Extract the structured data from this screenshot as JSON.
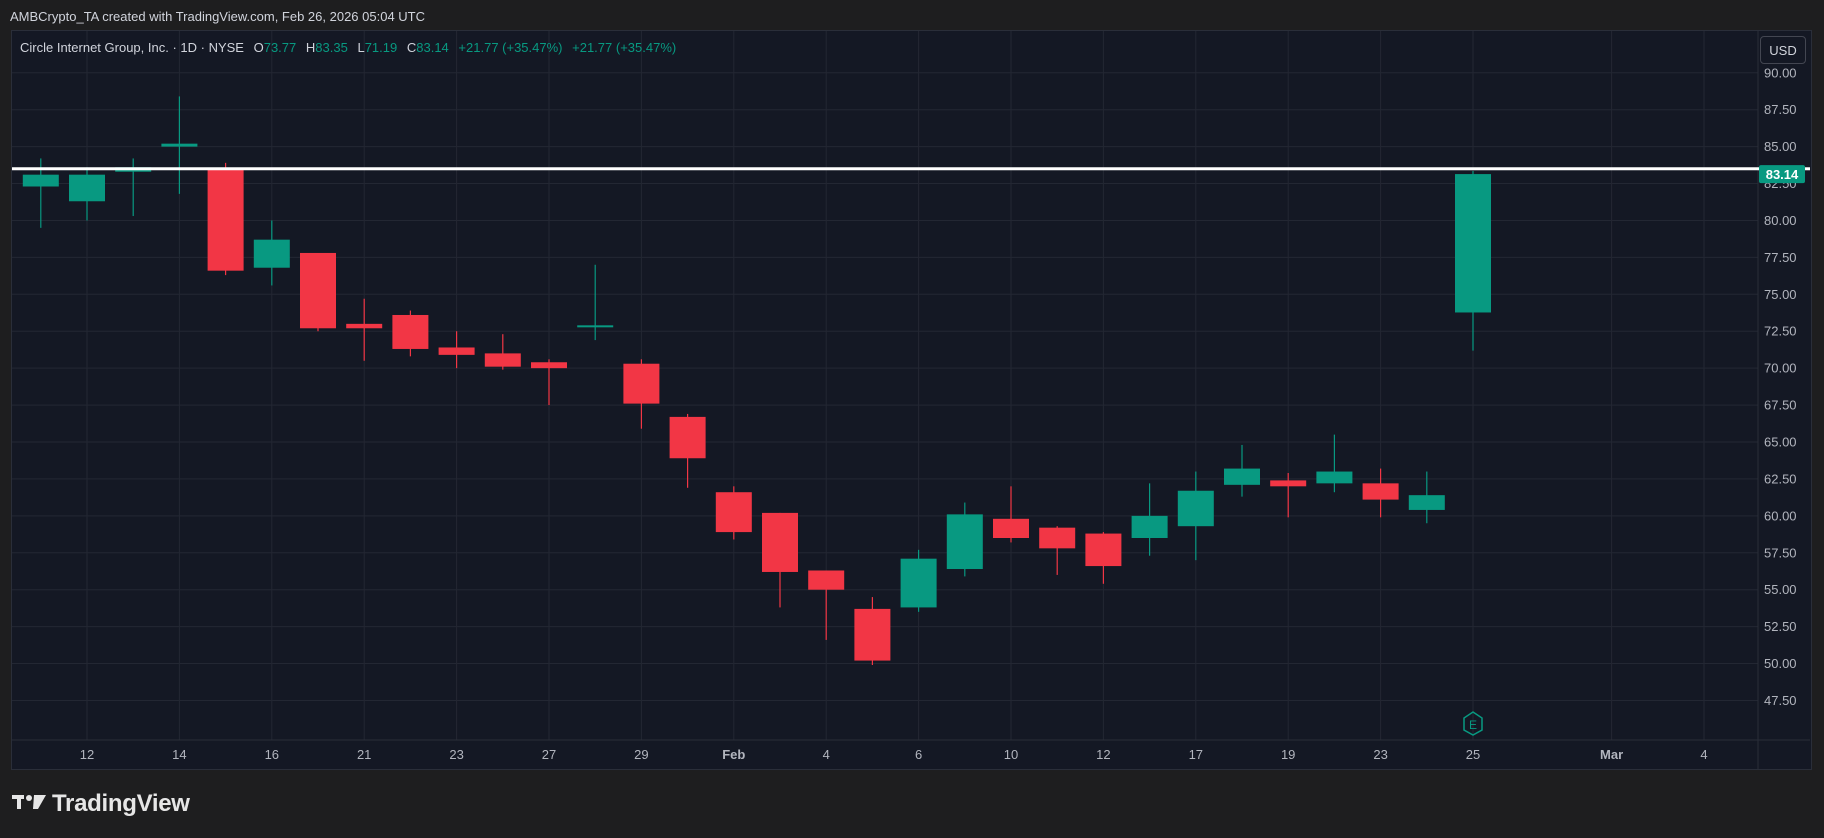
{
  "header": {
    "created_by": "AMBCrypto_TA created with TradingView.com, Feb 26, 2026 05:04 UTC"
  },
  "legend": {
    "name": "Circle Internet Group, Inc. · 1D · NYSE",
    "o_label": "O",
    "o_value": "73.77",
    "h_label": "H",
    "h_value": "83.35",
    "l_label": "L",
    "l_value": "71.19",
    "c_label": "C",
    "c_value": "83.14",
    "change": "+21.77 (+35.47%)",
    "change2": "+21.77 (+35.47%)"
  },
  "currency_button": "USD",
  "brand": {
    "name": "TradingView",
    "icon": "tradingview-logo-icon"
  },
  "colors": {
    "up": "#089981",
    "down": "#f23645",
    "background": "#141824",
    "grid": "#232733",
    "hline": "#ffffff"
  },
  "chart_data": {
    "type": "candlestick",
    "y_axis": {
      "min": 47.5,
      "max": 90.0,
      "step": 2.5,
      "ticks": [
        "90.00",
        "87.50",
        "85.00",
        "82.50",
        "80.00",
        "77.50",
        "75.00",
        "72.50",
        "70.00",
        "67.50",
        "65.00",
        "62.50",
        "60.00",
        "57.50",
        "55.00",
        "52.50",
        "50.00",
        "47.50"
      ]
    },
    "x_axis_ticks": [
      "12",
      "14",
      "16",
      "21",
      "23",
      "27",
      "29",
      "Feb",
      "4",
      "6",
      "10",
      "12",
      "17",
      "19",
      "23",
      "25",
      "Mar",
      "4"
    ],
    "horizontal_line": 83.5,
    "last_price_label": "83.14",
    "earnings_marker": "E",
    "candles": [
      {
        "date": "Jan 9",
        "o": 82.3,
        "h": 84.2,
        "l": 79.5,
        "c": 83.1
      },
      {
        "date": "Jan 12",
        "o": 81.3,
        "h": 83.6,
        "l": 80.0,
        "c": 83.1
      },
      {
        "date": "Jan 13",
        "o": 83.3,
        "h": 84.2,
        "l": 80.3,
        "c": 83.6
      },
      {
        "date": "Jan 14",
        "o": 85.0,
        "h": 88.4,
        "l": 81.8,
        "c": 85.2
      },
      {
        "date": "Jan 15",
        "o": 83.5,
        "h": 83.9,
        "l": 76.3,
        "c": 76.6
      },
      {
        "date": "Jan 16",
        "o": 76.8,
        "h": 80.0,
        "l": 75.6,
        "c": 78.7
      },
      {
        "date": "Jan 20",
        "o": 77.8,
        "h": 77.6,
        "l": 72.5,
        "c": 72.7
      },
      {
        "date": "Jan 21",
        "o": 73.0,
        "h": 74.7,
        "l": 70.5,
        "c": 72.7
      },
      {
        "date": "Jan 22",
        "o": 73.6,
        "h": 73.9,
        "l": 70.8,
        "c": 71.3
      },
      {
        "date": "Jan 23",
        "o": 71.4,
        "h": 72.5,
        "l": 70.0,
        "c": 70.9
      },
      {
        "date": "Jan 26",
        "o": 71.0,
        "h": 72.3,
        "l": 69.9,
        "c": 70.1
      },
      {
        "date": "Jan 27",
        "o": 70.4,
        "h": 70.6,
        "l": 67.5,
        "c": 70.0
      },
      {
        "date": "Jan 28",
        "o": 72.8,
        "h": 77.0,
        "l": 71.9,
        "c": 72.9
      },
      {
        "date": "Jan 29",
        "o": 70.3,
        "h": 70.6,
        "l": 65.9,
        "c": 67.6
      },
      {
        "date": "Jan 30",
        "o": 66.7,
        "h": 66.9,
        "l": 61.9,
        "c": 63.9
      },
      {
        "date": "Feb 2",
        "o": 61.6,
        "h": 62.0,
        "l": 58.4,
        "c": 58.9
      },
      {
        "date": "Feb 3",
        "o": 60.2,
        "h": 60.2,
        "l": 53.8,
        "c": 56.2
      },
      {
        "date": "Feb 4",
        "o": 56.3,
        "h": 56.3,
        "l": 51.6,
        "c": 55.0
      },
      {
        "date": "Feb 5",
        "o": 53.7,
        "h": 54.5,
        "l": 49.9,
        "c": 50.2
      },
      {
        "date": "Feb 6",
        "o": 53.8,
        "h": 57.7,
        "l": 53.5,
        "c": 57.1
      },
      {
        "date": "Feb 9",
        "o": 56.4,
        "h": 60.9,
        "l": 55.9,
        "c": 60.1
      },
      {
        "date": "Feb 10",
        "o": 59.8,
        "h": 62.0,
        "l": 58.2,
        "c": 58.5
      },
      {
        "date": "Feb 11",
        "o": 59.2,
        "h": 59.3,
        "l": 56.0,
        "c": 57.8
      },
      {
        "date": "Feb 12",
        "o": 58.8,
        "h": 58.9,
        "l": 55.4,
        "c": 56.6
      },
      {
        "date": "Feb 13",
        "o": 58.5,
        "h": 62.2,
        "l": 57.3,
        "c": 60.0
      },
      {
        "date": "Feb 17",
        "o": 59.3,
        "h": 63.0,
        "l": 57.0,
        "c": 61.7
      },
      {
        "date": "Feb 18",
        "o": 62.1,
        "h": 64.8,
        "l": 61.3,
        "c": 63.2
      },
      {
        "date": "Feb 19",
        "o": 62.4,
        "h": 62.9,
        "l": 59.9,
        "c": 62.0
      },
      {
        "date": "Feb 20",
        "o": 62.2,
        "h": 65.5,
        "l": 61.6,
        "c": 63.0
      },
      {
        "date": "Feb 23",
        "o": 62.2,
        "h": 63.2,
        "l": 59.9,
        "c": 61.1
      },
      {
        "date": "Feb 24",
        "o": 60.4,
        "h": 63.0,
        "l": 59.5,
        "c": 61.4
      },
      {
        "date": "Feb 25",
        "o": 73.77,
        "h": 83.35,
        "l": 71.19,
        "c": 83.14
      }
    ]
  }
}
